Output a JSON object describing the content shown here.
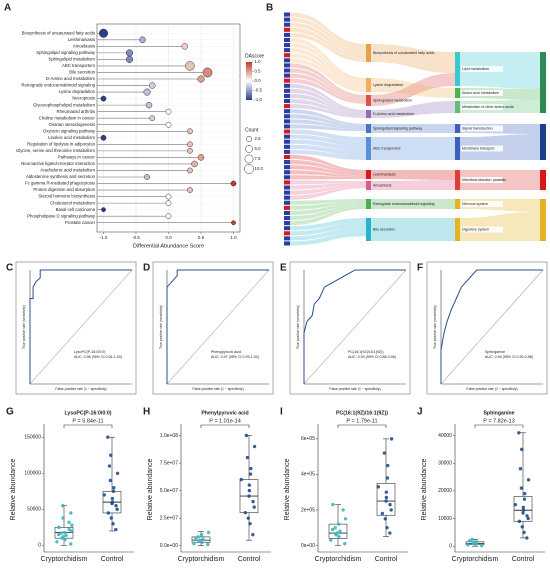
{
  "chart_data": [
    {
      "type": "lollipop",
      "panel": "A",
      "categories": [
        "Biosynthesis of unsaturated fatty acids",
        "Leishmaniasis",
        "Amoebiasis",
        "Sphingolipid signaling pathway",
        "Sphingolipid metabolism",
        "ABC transporters",
        "Bile secretion",
        "D-Amino acid metabolism",
        "Retrograde endocannabinoid signaling",
        "Lysine degradation",
        "Necroptosis",
        "Glycerophospholipid metabolism",
        "Rheumatoid arthritis",
        "Choline metabolism in cancer",
        "Ovarian steroidogenesis",
        "Oxytocin signaling pathway",
        "Linoleic acid metabolism",
        "Regulation of lipolysis in adipocytes",
        "Glycine, serine and threonine metabolism",
        "Pathways in cancer",
        "Neuroactive ligand-receptor interaction",
        "Arachidonic acid metabolism",
        "Aldosterone synthesis and secretion",
        "Fc gamma R-mediated phagocytosis",
        "Protein digestion and absorption",
        "Steroid hormone biosynthesis",
        "Cholesterol metabolism",
        "Basal cell carcinoma",
        "Phospholipase D signaling pathway",
        "Prostate cancer"
      ],
      "values": [
        -1,
        -0.4,
        0.25,
        -0.6,
        -0.6,
        0.33,
        0.6,
        0.5,
        -0.25,
        -0.33,
        -1,
        -0.3,
        0,
        -0.25,
        0,
        0.33,
        -1,
        0.33,
        0.33,
        0.5,
        0.4,
        0.33,
        -0.33,
        1,
        0.33,
        0,
        0,
        -1,
        0,
        1
      ],
      "counts": [
        8,
        3,
        3,
        4,
        4,
        9,
        10,
        4,
        3,
        4,
        2,
        3,
        2,
        2,
        2,
        2,
        2,
        2,
        2,
        3,
        3,
        2,
        2,
        2,
        2,
        2,
        2,
        1,
        2,
        1
      ],
      "xlabel": "Differential Abundance Score",
      "xlim": [
        -1.1,
        1.1
      ],
      "xticks": [
        {
          "value": -1,
          "label": "-1.0"
        },
        -0.5,
        {
          "value": 0,
          "label": "0.0"
        },
        0.5,
        {
          "value": 1,
          "label": "1.0"
        }
      ],
      "colormap": [
        "#2c3d8f",
        "#ffffff",
        "#c0392b"
      ],
      "clim": [
        -1,
        1
      ],
      "color_title": "DAscore",
      "color_ticks": [
        {
          "value": 1,
          "label": "1.0"
        },
        0.5,
        {
          "value": 0,
          "label": "0.0"
        },
        -0.5,
        {
          "value": -1,
          "label": "-1.0"
        }
      ],
      "size_title": "Count",
      "size_ticks": [
        2.5,
        {
          "value": 5,
          "label": "5.0"
        },
        7.5,
        {
          "value": 10,
          "label": "10.0"
        }
      ]
    },
    {
      "type": "sankey",
      "panel": "B",
      "pathways": [
        "Biosynthesis of unsaturated fatty acids",
        "Lysine degradation",
        "Sphingolipid metabolism",
        "D-Amino acid metabolism",
        "Sphingolipid signaling pathway",
        "ABC transporters",
        "Leishmaniasis",
        "Amoebiasis",
        "Retrograde endocannabinoid signaling",
        "Bile secretion"
      ],
      "classes": [
        "Lipid metabolism",
        "Amino acid metabolism",
        "Metabolism of other amino acids",
        "Signal transduction",
        "Membrane transport",
        "Infectious disease: parasitic",
        "Nervous system",
        "Digestive system"
      ],
      "links": [
        [
          0,
          0
        ],
        [
          1,
          1
        ],
        [
          2,
          0
        ],
        [
          3,
          2
        ],
        [
          4,
          3
        ],
        [
          5,
          4
        ],
        [
          6,
          5
        ],
        [
          7,
          5
        ],
        [
          8,
          6
        ],
        [
          9,
          7
        ]
      ]
    },
    {
      "type": "roc",
      "panel": "C",
      "annotation": [
        "LysoPC(P-16:0/0:0)",
        "AUC: 0.96 (95% CI 0.94-1.00)"
      ],
      "xlabel": "False positive rate (1 − specificity)",
      "ylabel": "True positive rate (sensitivity)",
      "xlim": [
        0,
        1
      ],
      "ylim": [
        0,
        1
      ],
      "x": [
        0,
        0,
        0.03,
        0.03,
        0.06,
        0.1,
        0.1,
        1
      ],
      "values": [
        0,
        0.75,
        0.75,
        0.85,
        0.9,
        0.93,
        1,
        1
      ]
    },
    {
      "type": "roc",
      "panel": "D",
      "annotation": [
        "Phenylpyruvic acid",
        "AUC: 0.97 (95% CI 0.93-1.00)"
      ],
      "xlabel": "False positive rate (1 − specificity)",
      "ylabel": "True positive rate (sensitivity)",
      "xlim": [
        0,
        1
      ],
      "ylim": [
        0,
        1
      ],
      "x": [
        0,
        0,
        0.05,
        0.1,
        0.1,
        1
      ],
      "values": [
        0,
        0.85,
        0.9,
        0.95,
        1,
        1
      ]
    },
    {
      "type": "roc",
      "panel": "E",
      "annotation": [
        "PC(16:1(9Z)/16:1(9Z))",
        "AUC: 0.93 (95% CI 0.88-0.98)"
      ],
      "xlabel": "False positive rate (1 − specificity)",
      "ylabel": "True positive rate (sensitivity)",
      "xlim": [
        0,
        1
      ],
      "ylim": [
        0,
        1
      ],
      "x": [
        0,
        0,
        0.03,
        0.08,
        0.1,
        0.15,
        0.2,
        0.3,
        0.4,
        0.5,
        1
      ],
      "values": [
        0,
        0.45,
        0.55,
        0.6,
        0.7,
        0.75,
        0.85,
        0.9,
        0.95,
        1,
        1
      ]
    },
    {
      "type": "roc",
      "panel": "F",
      "annotation": [
        "Sphinganine",
        "AUC: 0.94 (95% CI 0.90-0.98)"
      ],
      "xlabel": "False positive rate (1 − specificity)",
      "ylabel": "True positive rate (sensitivity)",
      "xlim": [
        0,
        1
      ],
      "ylim": [
        0,
        1
      ],
      "x": [
        0,
        0,
        0.03,
        0.06,
        0.1,
        0.15,
        0.2,
        0.25,
        0.35,
        1
      ],
      "values": [
        0,
        0.3,
        0.45,
        0.55,
        0.65,
        0.75,
        0.85,
        0.9,
        1,
        1
      ]
    },
    {
      "type": "box",
      "panel": "G",
      "title": "LysoPC(P-16:0/0:0)",
      "p_label": "P = 5.84e-11",
      "ylabel": "Relative abundance",
      "categories": [
        "Cryptorchidism",
        "Control"
      ],
      "colors": [
        "#3fb4c0",
        "#1f4e8c"
      ],
      "ylim": [
        -5000,
        160000
      ],
      "yticks": [
        0,
        50000,
        100000,
        150000
      ],
      "boxes": [
        {
          "low": 0,
          "q1": 10000,
          "median": 18000,
          "q3": 25000,
          "high": 55000,
          "points": [
            2000,
            5000,
            8000,
            10000,
            12000,
            14000,
            15000,
            17000,
            18000,
            20000,
            22000,
            25000,
            28000,
            32000,
            38000,
            45000,
            55000
          ]
        },
        {
          "low": 20000,
          "q1": 45000,
          "median": 60000,
          "q3": 75000,
          "high": 150000,
          "points": [
            22000,
            30000,
            38000,
            45000,
            50000,
            55000,
            58000,
            60000,
            65000,
            70000,
            75000,
            80000,
            90000,
            100000,
            110000,
            125000,
            150000
          ]
        }
      ]
    },
    {
      "type": "box",
      "panel": "H",
      "title": "Phenylpyruvic acid",
      "p_label": "P = 1.01e-14",
      "ylabel": "Relative abundance",
      "categories": [
        "Cryptorchidism",
        "Control"
      ],
      "colors": [
        "#3fb4c0",
        "#1f4e8c"
      ],
      "ylim": [
        -3000000,
        105000000
      ],
      "yticks": [
        {
          "value": 0,
          "label": "0.0e+00"
        },
        {
          "value": 25000000,
          "label": "2.5e+07"
        },
        {
          "value": 50000000,
          "label": "5.0e+07"
        },
        {
          "value": 75000000,
          "label": "7.5e+07"
        },
        {
          "value": 100000000,
          "label": "1.0e+08"
        }
      ],
      "boxes": [
        {
          "low": 0,
          "q1": 3000000,
          "median": 5000000,
          "q3": 8000000,
          "high": 13000000,
          "points": [
            1000000,
            2000000,
            3000000,
            4000000,
            5000000,
            6000000,
            7000000,
            8000000,
            10000000,
            12000000
          ]
        },
        {
          "low": 5000000,
          "q1": 30000000,
          "median": 45000000,
          "q3": 60000000,
          "high": 100000000,
          "points": [
            10000000,
            20000000,
            25000000,
            30000000,
            35000000,
            40000000,
            45000000,
            50000000,
            55000000,
            60000000,
            65000000,
            70000000,
            80000000,
            90000000,
            100000000
          ]
        }
      ]
    },
    {
      "type": "box",
      "panel": "I",
      "title": "PC(16:1(9Z)/16:1(9Z))",
      "p_label": "P = 1.79e-11",
      "ylabel": "Relative abundance",
      "categories": [
        "Cryptorchidism",
        "Control"
      ],
      "colors": [
        "#3fb4c0",
        "#1f4e8c"
      ],
      "ylim": [
        -20000,
        650000
      ],
      "yticks": [
        {
          "value": 0,
          "label": "0e+00"
        },
        {
          "value": 200000,
          "label": "2e+05"
        },
        {
          "value": 400000,
          "label": "4e+05"
        },
        {
          "value": 600000,
          "label": "6e+05"
        }
      ],
      "boxes": [
        {
          "low": 0,
          "q1": 40000,
          "median": 70000,
          "q3": 120000,
          "high": 230000,
          "points": [
            10000,
            30000,
            50000,
            60000,
            70000,
            80000,
            90000,
            100000,
            120000,
            150000,
            200000,
            230000
          ]
        },
        {
          "low": 50000,
          "q1": 170000,
          "median": 250000,
          "q3": 350000,
          "high": 600000,
          "points": [
            70000,
            100000,
            150000,
            180000,
            200000,
            230000,
            250000,
            270000,
            300000,
            330000,
            380000,
            450000,
            520000,
            600000
          ]
        }
      ]
    },
    {
      "type": "box",
      "panel": "J",
      "title": "Sphinganine",
      "p_label": "P = 7.82e-13",
      "ylabel": "Relative abundance",
      "categories": [
        "Cryptorchidism",
        "Control"
      ],
      "colors": [
        "#3fb4c0",
        "#1f4e8c"
      ],
      "ylim": [
        -1000,
        42000
      ],
      "yticks": [
        0,
        10000,
        20000,
        30000,
        40000
      ],
      "boxes": [
        {
          "low": 0,
          "q1": 600,
          "median": 1000,
          "q3": 1600,
          "high": 2500,
          "points": [
            200,
            500,
            800,
            1000,
            1300,
            1500,
            2000,
            2500
          ]
        },
        {
          "low": 3000,
          "q1": 9000,
          "median": 13000,
          "q3": 18000,
          "high": 41000,
          "points": [
            3000,
            5000,
            7000,
            9000,
            10000,
            11000,
            12000,
            13000,
            14000,
            15000,
            17000,
            19000,
            21000,
            24000,
            28000,
            35000,
            41000
          ]
        }
      ]
    }
  ]
}
